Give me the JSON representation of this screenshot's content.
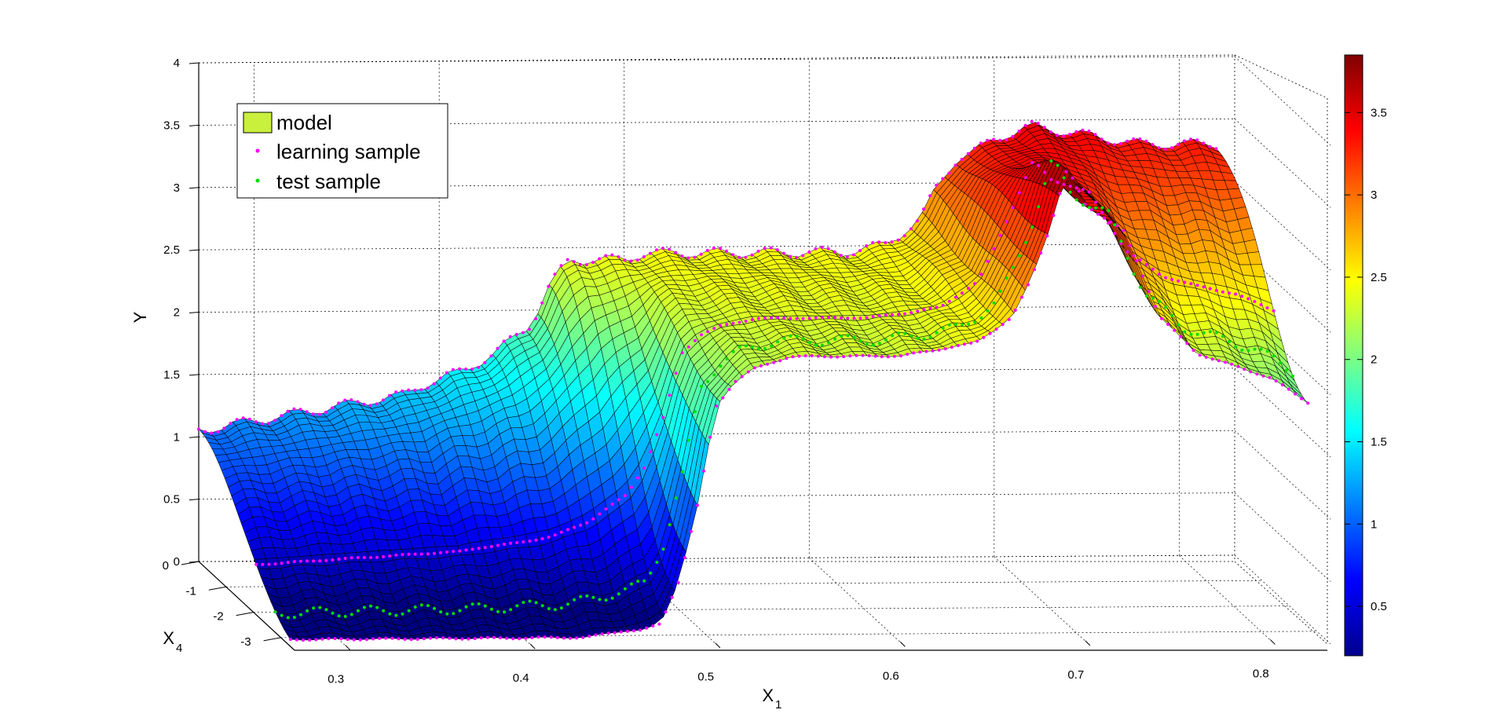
{
  "chart_data": {
    "type": "surface3d",
    "xlabel": "X",
    "xlabel_sub": "1",
    "ylabel": "Y",
    "zlabel": "X",
    "zlabel_sub": "4",
    "x_ticks": [
      "0.3",
      "0.4",
      "0.5",
      "0.6",
      "0.7",
      "0.8"
    ],
    "y_ticks": [
      "0",
      "0.5",
      "1",
      "1.5",
      "2",
      "2.5",
      "3",
      "3.5",
      "4"
    ],
    "x4_ticks": [
      "0",
      "-1",
      "-2",
      "-3"
    ],
    "xlim": [
      0.27,
      0.83
    ],
    "x4lim": [
      -3.5,
      0
    ],
    "ylim": [
      0,
      4
    ],
    "colorbar": {
      "ticks": [
        "0.5",
        "1",
        "1.5",
        "2",
        "2.5",
        "3",
        "3.5"
      ],
      "range": [
        0.2,
        3.85
      ],
      "colormap": "jet"
    },
    "grid": true,
    "legend_position": "top-left",
    "legend": [
      {
        "label": "model",
        "marker": "patch",
        "color": "#c8f03c"
      },
      {
        "label": "learning sample",
        "marker": "dot",
        "color": "#ff00ff"
      },
      {
        "label": "test sample",
        "marker": "dot",
        "color": "#00dd00"
      }
    ],
    "surface_profile": {
      "x1": [
        0.27,
        0.29,
        0.31,
        0.33,
        0.35,
        0.37,
        0.38,
        0.39,
        0.41,
        0.43,
        0.45,
        0.455,
        0.46,
        0.47,
        0.48,
        0.49,
        0.5,
        0.51,
        0.52,
        0.54,
        0.56,
        0.58,
        0.6,
        0.62,
        0.64,
        0.66,
        0.67,
        0.68,
        0.69,
        0.7,
        0.72,
        0.74,
        0.76,
        0.78,
        0.8,
        0.82
      ],
      "y_at_x4_0": [
        1.05,
        1.1,
        1.15,
        1.2,
        1.25,
        1.3,
        1.32,
        1.4,
        1.5,
        1.65,
        1.9,
        2.05,
        2.2,
        2.4,
        2.4,
        2.4,
        2.4,
        2.45,
        2.45,
        2.45,
        2.45,
        2.45,
        2.45,
        2.45,
        2.5,
        2.7,
        3.0,
        3.2,
        3.25,
        3.35,
        3.45,
        3.4,
        3.35,
        3.3,
        3.3,
        3.3
      ],
      "y_at_x4_min": [
        0.05,
        0.05,
        0.05,
        0.05,
        0.05,
        0.05,
        0.05,
        0.05,
        0.05,
        0.05,
        0.1,
        0.1,
        0.1,
        0.15,
        0.5,
        1.1,
        1.9,
        2.1,
        2.2,
        2.3,
        2.3,
        2.3,
        2.3,
        2.35,
        2.4,
        2.6,
        2.9,
        3.3,
        3.8,
        3.5,
        3.3,
        2.6,
        2.3,
        2.2,
        2.1,
        1.9
      ]
    }
  }
}
